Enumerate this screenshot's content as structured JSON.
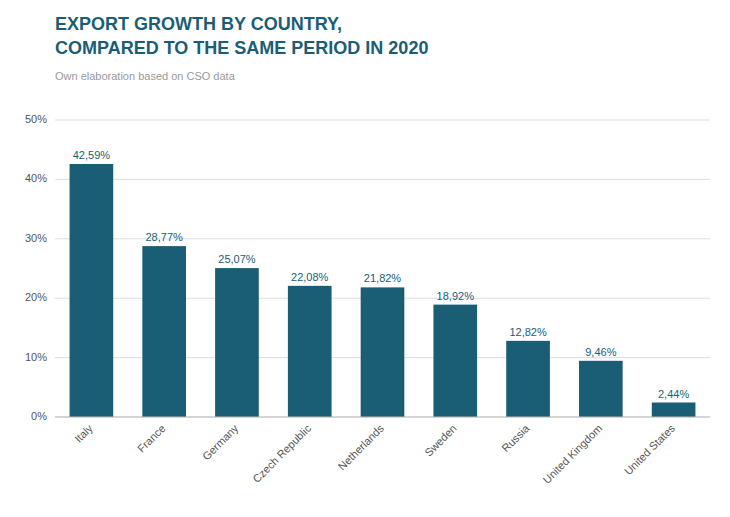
{
  "chart_data": {
    "type": "bar",
    "title": [
      "EXPORT GROWTH BY COUNTRY,",
      "COMPARED TO THE SAME PERIOD IN 2020"
    ],
    "subtitle": "Own elaboration based on CSO data",
    "categories": [
      "Italy",
      "France",
      "Germany",
      "Czech Republic",
      "Netherlands",
      "Sweden",
      "Russia",
      "United Kingdom",
      "United States"
    ],
    "values": [
      42.59,
      28.77,
      25.07,
      22.08,
      21.82,
      18.92,
      12.82,
      9.46,
      2.44
    ],
    "value_labels": [
      "42,59%",
      "28,77%",
      "25,07%",
      "22,08%",
      "21,82%",
      "18,92%",
      "12,82%",
      "9,46%",
      "2,44%"
    ],
    "color": "#1a5e75",
    "ylim": [
      0,
      50
    ],
    "yticks": [
      {
        "value": 0,
        "label": "0%"
      },
      {
        "value": 10,
        "label": "10%"
      },
      {
        "value": 20,
        "label": "20%"
      },
      {
        "value": 30,
        "label": "30%"
      },
      {
        "value": 40,
        "label": "40%"
      },
      {
        "value": 50,
        "label": "50%"
      }
    ],
    "grid": true,
    "data_labels": true
  }
}
